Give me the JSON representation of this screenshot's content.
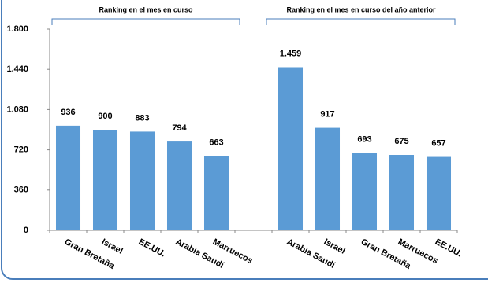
{
  "chart_data": {
    "type": "bar",
    "annotations": [
      "Ranking en el mes en curso",
      "Ranking en el mes en curso del año anterior"
    ],
    "categories": [
      "Gran Bretaña",
      "Israel",
      "EE.UU.",
      "Arabia Saudí",
      "Marruecos",
      null,
      "Arabia Saudí",
      "Israel",
      "Gran Bretaña",
      "Marruecos",
      "EE.UU."
    ],
    "values": [
      936,
      900,
      883,
      794,
      663,
      null,
      1459,
      917,
      693,
      675,
      657
    ],
    "value_labels": [
      "936",
      "900",
      "883",
      "794",
      "663",
      null,
      "1.459",
      "917",
      "693",
      "675",
      "657"
    ],
    "color": "#5b9bd5",
    "ylim": [
      0,
      1800
    ],
    "yticks": [
      0,
      360,
      720,
      {
        "value": 1080,
        "label": "1.080"
      },
      {
        "value": 1440,
        "label": "1.440"
      },
      {
        "value": 1800,
        "label": "1.800"
      }
    ],
    "grid": false
  }
}
